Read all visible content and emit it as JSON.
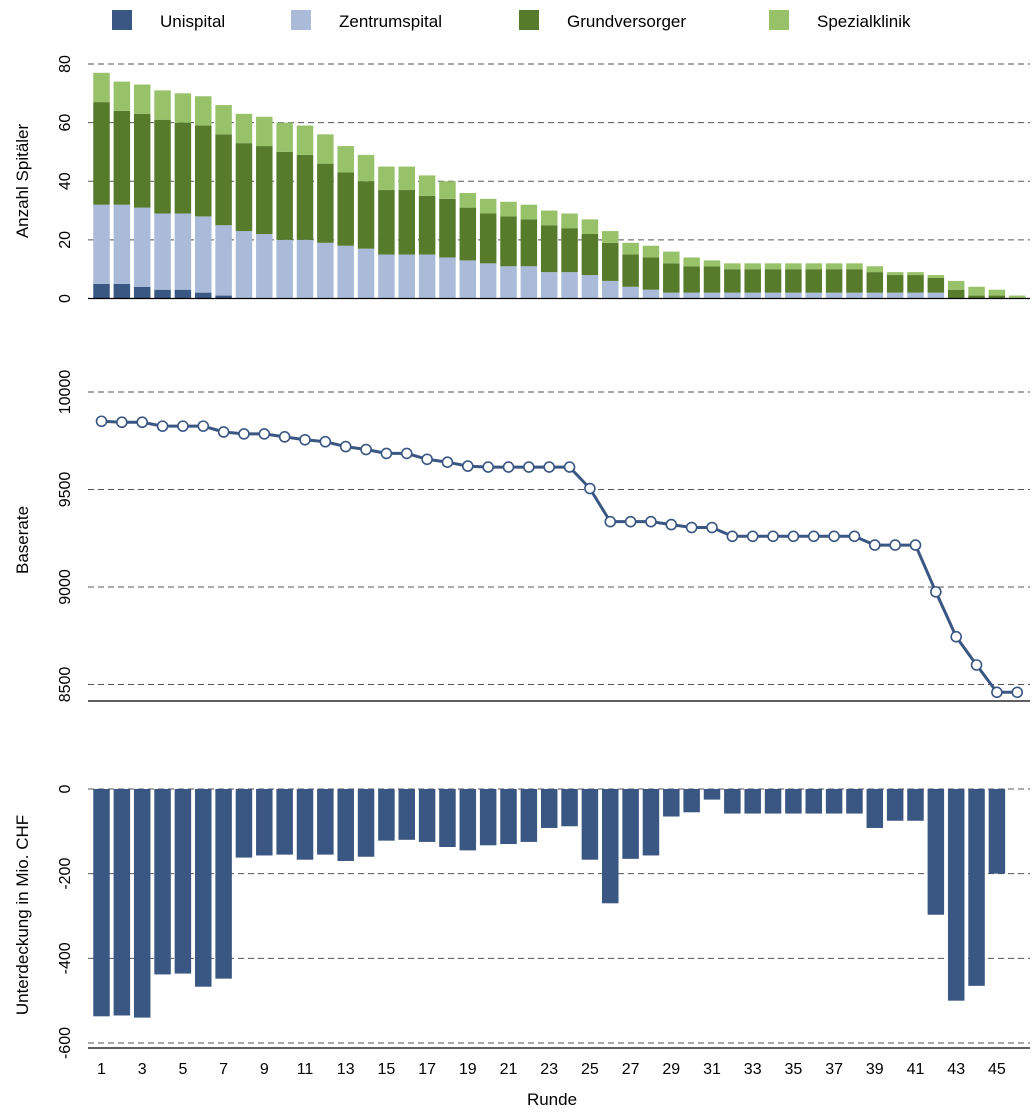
{
  "legend": {
    "items": [
      {
        "label": "Unispital",
        "color": "#3a5683"
      },
      {
        "label": "Zentrumspital",
        "color": "#a9bbd9"
      },
      {
        "label": "Grundversorger",
        "color": "#567b2b"
      },
      {
        "label": "Spezialklinik",
        "color": "#98c26a"
      }
    ]
  },
  "xaxis": {
    "label": "Runde",
    "tick_labels": [
      1,
      3,
      5,
      7,
      9,
      11,
      13,
      15,
      17,
      19,
      21,
      23,
      25,
      27,
      29,
      31,
      33,
      35,
      37,
      39,
      41,
      43,
      45
    ]
  },
  "chart_data": [
    {
      "type": "bar",
      "stacked": true,
      "ylabel": "Anzahl Spitäler",
      "ylim": [
        0,
        80
      ],
      "yticks": [
        0,
        20,
        40,
        60,
        80
      ],
      "grid": "dashed horizontal",
      "legend_position": "top",
      "x": [
        1,
        2,
        3,
        4,
        5,
        6,
        7,
        8,
        9,
        10,
        11,
        12,
        13,
        14,
        15,
        16,
        17,
        18,
        19,
        20,
        21,
        22,
        23,
        24,
        25,
        26,
        27,
        28,
        29,
        30,
        31,
        32,
        33,
        34,
        35,
        36,
        37,
        38,
        39,
        40,
        41,
        42,
        43,
        44,
        45,
        46
      ],
      "series": [
        {
          "name": "Unispital",
          "color": "#3a5683",
          "values": [
            5,
            5,
            4,
            3,
            3,
            2,
            1,
            0,
            0,
            0,
            0,
            0,
            0,
            0,
            0,
            0,
            0,
            0,
            0,
            0,
            0,
            0,
            0,
            0,
            0,
            0,
            0,
            0,
            0,
            0,
            0,
            0,
            0,
            0,
            0,
            0,
            0,
            0,
            0,
            0,
            0,
            0,
            0,
            0,
            0,
            0
          ]
        },
        {
          "name": "Zentrumspital",
          "color": "#a9bbd9",
          "values": [
            27,
            27,
            27,
            26,
            26,
            26,
            24,
            23,
            22,
            20,
            20,
            19,
            18,
            17,
            15,
            15,
            15,
            14,
            13,
            12,
            11,
            11,
            9,
            9,
            8,
            6,
            4,
            3,
            2,
            2,
            2,
            2,
            2,
            2,
            2,
            2,
            2,
            2,
            2,
            2,
            2,
            2,
            0,
            0,
            0,
            0
          ]
        },
        {
          "name": "Grundversorger",
          "color": "#567b2b",
          "values": [
            35,
            32,
            32,
            32,
            31,
            31,
            31,
            30,
            30,
            30,
            29,
            27,
            25,
            23,
            22,
            22,
            20,
            20,
            18,
            17,
            17,
            16,
            16,
            15,
            14,
            13,
            11,
            11,
            10,
            9,
            9,
            8,
            8,
            8,
            8,
            8,
            8,
            8,
            7,
            6,
            6,
            5,
            3,
            1,
            1,
            0
          ]
        },
        {
          "name": "Spezialklinik",
          "color": "#98c26a",
          "values": [
            10,
            10,
            10,
            10,
            10,
            10,
            10,
            10,
            10,
            10,
            10,
            10,
            9,
            9,
            8,
            8,
            7,
            6,
            5,
            5,
            5,
            5,
            5,
            5,
            5,
            4,
            4,
            4,
            4,
            3,
            2,
            2,
            2,
            2,
            2,
            2,
            2,
            2,
            2,
            1,
            1,
            1,
            3,
            3,
            2,
            1
          ]
        }
      ]
    },
    {
      "type": "line",
      "ylabel": "Baserate",
      "ylim": [
        8480,
        10200
      ],
      "yticks": [
        8500,
        9000,
        9500,
        10000
      ],
      "grid": "dashed horizontal",
      "markers": "open circle",
      "color": "#3a5683",
      "x": [
        1,
        2,
        3,
        4,
        5,
        6,
        7,
        8,
        9,
        10,
        11,
        12,
        13,
        14,
        15,
        16,
        17,
        18,
        19,
        20,
        21,
        22,
        23,
        24,
        25,
        26,
        27,
        28,
        29,
        30,
        31,
        32,
        33,
        34,
        35,
        36,
        37,
        38,
        39,
        40,
        41,
        42,
        43,
        44,
        45,
        46
      ],
      "values": [
        9850,
        9845,
        9845,
        9825,
        9825,
        9825,
        9795,
        9785,
        9785,
        9770,
        9755,
        9745,
        9720,
        9705,
        9685,
        9685,
        9655,
        9640,
        9620,
        9615,
        9615,
        9615,
        9615,
        9615,
        9505,
        9335,
        9335,
        9335,
        9320,
        9305,
        9305,
        9260,
        9260,
        9260,
        9260,
        9260,
        9260,
        9260,
        9215,
        9215,
        9215,
        8975,
        8745,
        8600,
        8460,
        8460
      ]
    },
    {
      "type": "bar",
      "ylabel": "Unterdeckung in Mio. CHF",
      "ylim": [
        -615,
        15
      ],
      "yticks": [
        -600,
        -400,
        -200,
        0
      ],
      "grid": "dashed horizontal",
      "color": "#3a5683",
      "x": [
        1,
        2,
        3,
        4,
        5,
        6,
        7,
        8,
        9,
        10,
        11,
        12,
        13,
        14,
        15,
        16,
        17,
        18,
        19,
        20,
        21,
        22,
        23,
        24,
        25,
        26,
        27,
        28,
        29,
        30,
        31,
        32,
        33,
        34,
        35,
        36,
        37,
        38,
        39,
        40,
        41,
        42,
        43,
        44,
        45
      ],
      "values": [
        -537,
        -535,
        -540,
        -438,
        -436,
        -467,
        -448,
        -162,
        -157,
        -155,
        -167,
        -155,
        -170,
        -160,
        -122,
        -120,
        -125,
        -137,
        -145,
        -133,
        -130,
        -125,
        -92,
        -88,
        -167,
        -270,
        -165,
        -157,
        -65,
        -55,
        -25,
        -58,
        -58,
        -58,
        -58,
        -58,
        -58,
        -58,
        -92,
        -75,
        -75,
        -297,
        -500,
        -465,
        -200
      ]
    }
  ]
}
